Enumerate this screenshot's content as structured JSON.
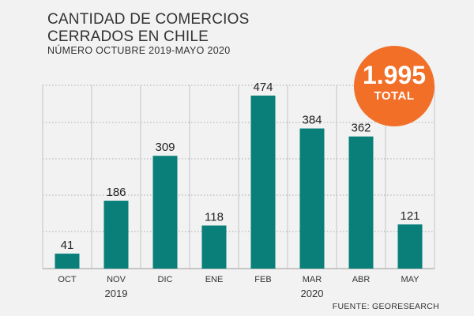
{
  "title_line1": "CANTIDAD DE COMERCIOS",
  "title_line2": "CERRADOS EN CHILE",
  "subtitle": "NÚMERO OCTUBRE 2019-MAYO 2020",
  "total": {
    "value": "1.995",
    "label": "TOTAL"
  },
  "source": "FUENTE: GEORESEARCH",
  "colors": {
    "bar": "#0a7f7a",
    "badge": "#f26f28",
    "text": "#333333"
  },
  "chart_data": {
    "type": "bar",
    "title": "CANTIDAD DE COMERCIOS CERRADOS EN CHILE",
    "subtitle": "NÚMERO OCTUBRE 2019-MAYO 2020",
    "categories": [
      "OCT",
      "NOV",
      "DIC",
      "ENE",
      "FEB",
      "MAR",
      "ABR",
      "MAY"
    ],
    "values": [
      41,
      186,
      309,
      118,
      474,
      384,
      362,
      121
    ],
    "value_labels": [
      "41",
      "186",
      "309",
      "118",
      "474",
      "384",
      "362",
      "121"
    ],
    "years": [
      {
        "label": "2019",
        "from": 0,
        "to": 2
      },
      {
        "label": "2020",
        "from": 3,
        "to": 7
      }
    ],
    "ylim": [
      0,
      500
    ],
    "grid": true,
    "xlabel": "",
    "ylabel": ""
  }
}
